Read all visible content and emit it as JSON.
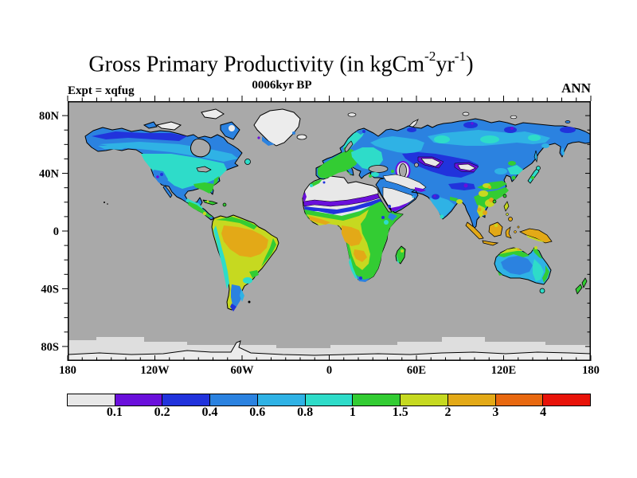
{
  "title": {
    "segments": [
      {
        "text": "Gross Primary Productivity (in kgCm"
      },
      {
        "text": "-2",
        "sup": true
      },
      {
        "text": "yr"
      },
      {
        "text": "-1",
        "sup": true
      },
      {
        "text": ")"
      }
    ],
    "plain": "Gross Primary Productivity (in kgCm-2yr-1)"
  },
  "subtitle": "0006kyr BP",
  "experiment_label": "Expt = xqfug",
  "season_label": "ANN",
  "axes": {
    "y_ticks": [
      {
        "label": "80N",
        "lat": 80
      },
      {
        "label": "40N",
        "lat": 40
      },
      {
        "label": "0",
        "lat": 0
      },
      {
        "label": "40S",
        "lat": -40
      },
      {
        "label": "80S",
        "lat": -80
      }
    ],
    "x_ticks": [
      {
        "label": "180",
        "lon": -180
      },
      {
        "label": "120W",
        "lon": -120
      },
      {
        "label": "60W",
        "lon": -60
      },
      {
        "label": "0",
        "lon": 0
      },
      {
        "label": "60E",
        "lon": 60
      },
      {
        "label": "120E",
        "lon": 120
      },
      {
        "label": "180",
        "lon": 180
      }
    ],
    "minor_step_deg": 10
  },
  "colorbar": {
    "colors": [
      "#E8E8E8",
      "#6A0FDB",
      "#2133DC",
      "#2B82E0",
      "#2FB2E5",
      "#2EDCC9",
      "#33CC33",
      "#C6D920",
      "#E3A917",
      "#E8680F",
      "#E81309"
    ],
    "labels": [
      "0.1",
      "0.2",
      "0.4",
      "0.6",
      "0.8",
      "1",
      "1.5",
      "2",
      "3",
      "4"
    ]
  },
  "map_colors": {
    "ocean": "#A9A9A9",
    "sea_ice": "#DEDEDE",
    "ice_sheet": "#ECECEC",
    "coastline": "#000000"
  },
  "chart_data": {
    "type": "heatmap",
    "subtype": "filled_contour_world_map",
    "title": "Gross Primary Productivity (in kgCm-2yr-1)",
    "subtitle": "0006kyr BP",
    "experiment": "Expt = xqfug",
    "season": "ANN",
    "units": "kgC m-2 yr-1",
    "projection": "equirectangular",
    "lon_range": [
      -180,
      180
    ],
    "lat_range": [
      -90,
      90
    ],
    "contour_levels": [
      0.1,
      0.2,
      0.4,
      0.6,
      0.8,
      1,
      1.5,
      2,
      3,
      4
    ],
    "palette": [
      "#E8E8E8",
      "#6A0FDB",
      "#2133DC",
      "#2B82E0",
      "#2FB2E5",
      "#2EDCC9",
      "#33CC33",
      "#C6D920",
      "#E3A917",
      "#E8680F",
      "#E81309"
    ],
    "legend_position": "bottom",
    "grid": false,
    "regional_values_kgC_m2_yr": {
      "sahara_arabia_central_asian_deserts": "< 0.1",
      "desert_margins": "0.1 - 0.4",
      "high_arctic_tundra_siberia_n_canada": "0.4 - 0.8",
      "boreal_forest_canada_siberia": "0.6 - 1",
      "temperate_europe_east_us_china": "1 - 1.5",
      "amazon_congo_core": "2 - 3",
      "se_asia_indonesia_new_guinea": "2 - 3",
      "tropical_margins_sahel_brazil_india": "1.5 - 2",
      "central_australia": "0.4 - 0.8",
      "greenland_antarctica_ice": "< 0.1 (ice)"
    }
  }
}
